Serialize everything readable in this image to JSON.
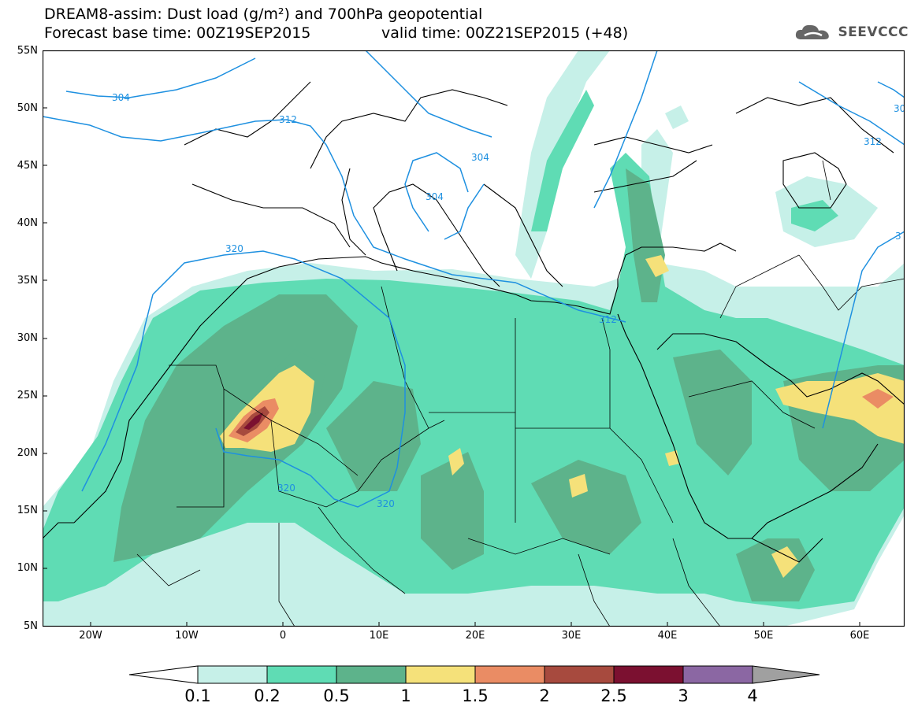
{
  "header": {
    "line1": "DREAM8-assim: Dust load (g/m²) and 700hPa geopotential",
    "line2_left": "Forecast base time: 00Z19SEP2015",
    "line2_right": "valid time: 00Z21SEP2015 (+48)"
  },
  "logo": {
    "text": "SEEVCCC",
    "icon": "cloud-logo-icon"
  },
  "map": {
    "lat_labels": [
      "55N",
      "50N",
      "45N",
      "40N",
      "35N",
      "30N",
      "25N",
      "20N",
      "15N",
      "10N",
      "5N"
    ],
    "lon_labels": [
      "20W",
      "10W",
      "0",
      "10E",
      "20E",
      "30E",
      "40E",
      "50E",
      "60E"
    ],
    "contour_labels": [
      "304",
      "312",
      "304",
      "304",
      "320",
      "312",
      "320",
      "320",
      "312",
      "30",
      "3"
    ],
    "colors": {
      "c0": "#c6f0e8",
      "c1": "#5fdcb4",
      "c2": "#5db38b",
      "c3": "#f5e17a",
      "c4": "#ea8c64",
      "c5": "#a74a3e",
      "c6": "#7b1030",
      "c7": "#8b67a3",
      "contour": "#1e90e0",
      "coast": "#000000"
    }
  },
  "colorbar": {
    "labels": [
      "0.1",
      "0.2",
      "0.5",
      "1",
      "1.5",
      "2",
      "2.5",
      "3",
      "4"
    ],
    "colors": [
      "#c6f0e8",
      "#5fdcb4",
      "#5db38b",
      "#f5e17a",
      "#ea8c64",
      "#a74a3e",
      "#7b1030",
      "#8b67a3"
    ],
    "low_color": "#ffffff",
    "high_color": "#a0a0a0"
  }
}
